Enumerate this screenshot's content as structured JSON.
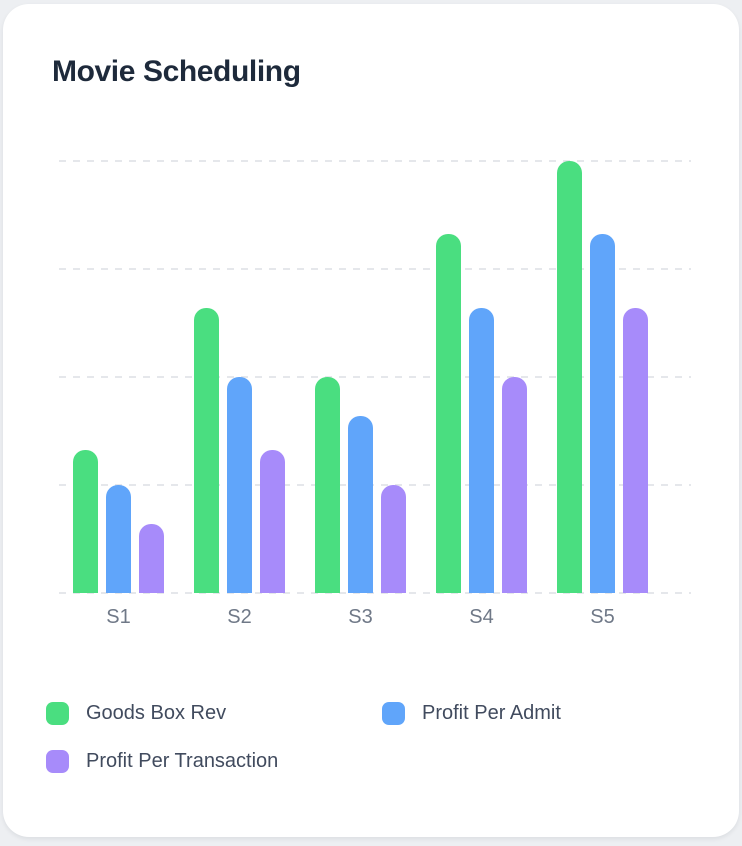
{
  "chart_data": {
    "type": "bar",
    "title": "Movie Scheduling",
    "categories": [
      "S1",
      "S2",
      "S3",
      "S4",
      "S5"
    ],
    "series": [
      {
        "name": "Goods Box Rev",
        "color": "#4ade80",
        "values": [
          33,
          66,
          50,
          83,
          100
        ]
      },
      {
        "name": "Profit Per Admit",
        "color": "#60a5fa",
        "values": [
          25,
          50,
          41,
          66,
          83
        ]
      },
      {
        "name": "Profit Per Transaction",
        "color": "#a78bfa",
        "values": [
          16,
          33,
          25,
          50,
          66
        ]
      }
    ],
    "xlabel": "",
    "ylabel": "",
    "ylim": [
      0,
      100
    ],
    "y_tick_labels_visible": false,
    "gridlines": {
      "horizontal": true,
      "style": "dashed",
      "values": [
        0,
        25,
        50,
        75,
        100
      ]
    },
    "legend": {
      "position": "bottom-left",
      "columns": 2
    }
  },
  "theme": {
    "page_background": "#edeff2",
    "card_background": "#ffffff",
    "title_color": "#1e2a3b",
    "axis_label_color": "#6f7887",
    "legend_text_color": "#414b5e",
    "gridline_color": "#e5e7eb"
  }
}
